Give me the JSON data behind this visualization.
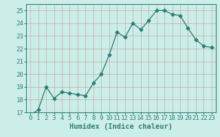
{
  "x": [
    0,
    1,
    2,
    3,
    4,
    5,
    6,
    7,
    8,
    9,
    10,
    11,
    12,
    13,
    14,
    15,
    16,
    17,
    18,
    19,
    20,
    21,
    22,
    23
  ],
  "y": [
    16.8,
    17.2,
    19.0,
    18.1,
    18.6,
    18.5,
    18.4,
    18.3,
    19.3,
    20.0,
    21.5,
    23.3,
    22.9,
    24.0,
    23.5,
    24.2,
    25.0,
    25.0,
    24.7,
    24.6,
    23.6,
    22.7,
    22.2,
    22.1
  ],
  "line_color": "#2d7f72",
  "marker": "D",
  "marker_size": 2.5,
  "bg_color": "#cceee8",
  "grid_color": "#c0a8a8",
  "xlabel": "Humidex (Indice chaleur)",
  "ylim": [
    17,
    25.5
  ],
  "yticks": [
    17,
    18,
    19,
    20,
    21,
    22,
    23,
    24,
    25
  ],
  "xticks": [
    0,
    1,
    2,
    3,
    4,
    5,
    6,
    7,
    8,
    9,
    10,
    11,
    12,
    13,
    14,
    15,
    16,
    17,
    18,
    19,
    20,
    21,
    22,
    23
  ],
  "xlabel_fontsize": 7.5,
  "tick_fontsize": 6.5,
  "line_width": 1.0
}
